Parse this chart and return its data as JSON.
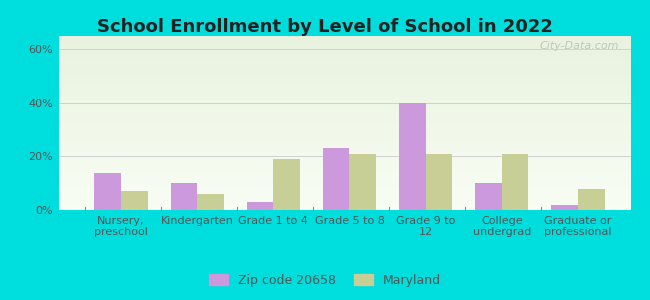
{
  "title": "School Enrollment by Level of School in 2022",
  "categories": [
    "Nursery,\npreschool",
    "Kindergarten",
    "Grade 1 to 4",
    "Grade 5 to 8",
    "Grade 9 to\n12",
    "College\nundergrad",
    "Graduate or\nprofessional"
  ],
  "zip_values": [
    14,
    10,
    3,
    23,
    40,
    10,
    2
  ],
  "md_values": [
    7,
    6,
    19,
    21,
    21,
    21,
    8
  ],
  "zip_color": "#cc99dd",
  "md_color": "#c8cf96",
  "zip_label": "Zip code 20658",
  "md_label": "Maryland",
  "ylim": [
    0,
    65
  ],
  "yticks": [
    0,
    20,
    40,
    60
  ],
  "ytick_labels": [
    "0%",
    "20%",
    "40%",
    "60%"
  ],
  "background_outer": "#00dddd",
  "grad_top": "#e8f2de",
  "grad_bottom": "#f8fdf4",
  "title_fontsize": 13,
  "tick_fontsize": 8,
  "legend_fontsize": 9,
  "bar_width": 0.35,
  "watermark": "City-Data.com"
}
